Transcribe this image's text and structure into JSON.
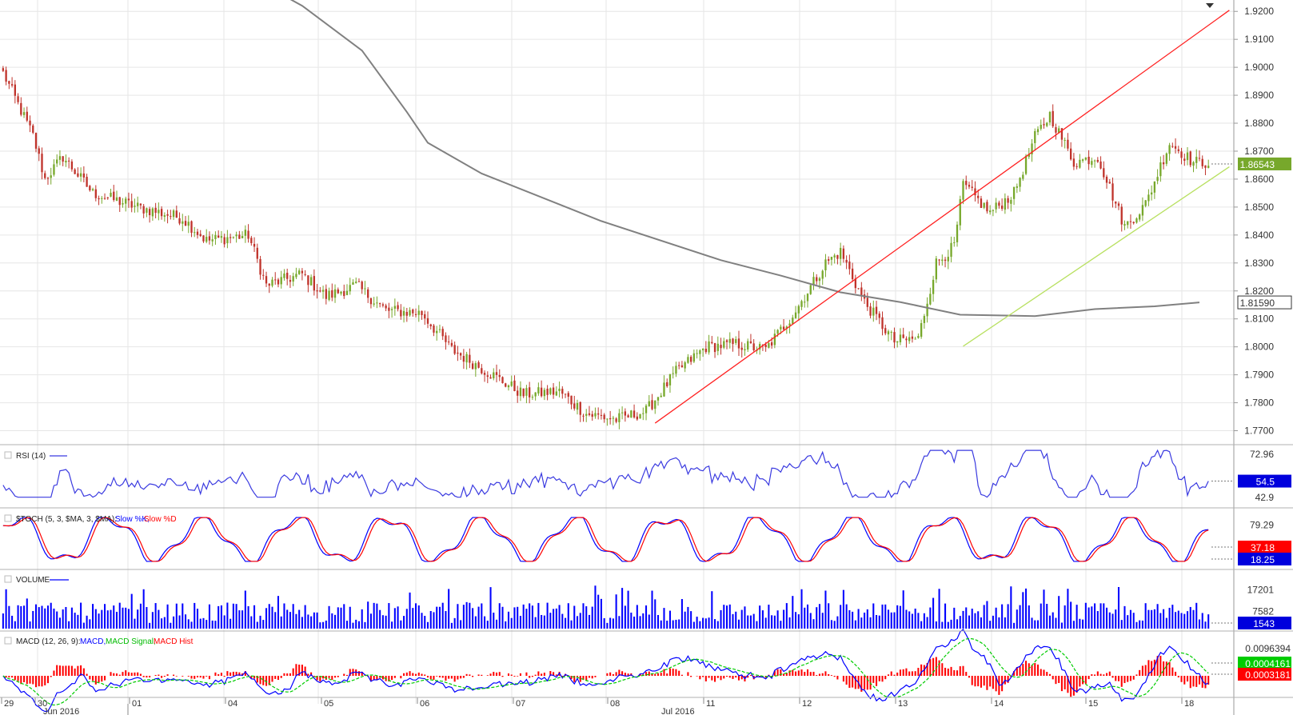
{
  "chart_data": {
    "type": "candlestick",
    "symbol_hint": "",
    "price_axis": {
      "range": [
        1.765,
        1.9235
      ],
      "ticks": [
        "1.9200",
        "1.9100",
        "1.9000",
        "1.8900",
        "1.8800",
        "1.8700",
        "1.8600",
        "1.8500",
        "1.8400",
        "1.8300",
        "1.8200",
        "1.8100",
        "1.8000",
        "1.7900",
        "1.7800",
        "1.7700"
      ],
      "tick_values": [
        1.92,
        1.91,
        1.9,
        1.89,
        1.88,
        1.87,
        1.86,
        1.85,
        1.84,
        1.83,
        1.82,
        1.81,
        1.8,
        1.79,
        1.78,
        1.77
      ],
      "current_price": 1.86543,
      "current_price_label": "1.86543",
      "ma_value": 1.8159,
      "ma_value_label": "1.81590"
    },
    "x_axis": {
      "day_labels": [
        "29",
        "30",
        "01",
        "04",
        "05",
        "06",
        "07",
        "08",
        "11",
        "12",
        "13",
        "14",
        "15",
        "18"
      ],
      "month_labels": [
        "Jun 2016",
        "Jul 2016"
      ]
    },
    "anchors": [
      {
        "i": 0,
        "p": 1.898
      },
      {
        "i": 10,
        "p": 1.8755
      },
      {
        "i": 14,
        "p": 1.86
      },
      {
        "i": 20,
        "p": 1.868
      },
      {
        "i": 30,
        "p": 1.855
      },
      {
        "i": 45,
        "p": 1.85
      },
      {
        "i": 60,
        "p": 1.846
      },
      {
        "i": 68,
        "p": 1.838
      },
      {
        "i": 82,
        "p": 1.84
      },
      {
        "i": 88,
        "p": 1.822
      },
      {
        "i": 100,
        "p": 1.826
      },
      {
        "i": 108,
        "p": 1.818
      },
      {
        "i": 118,
        "p": 1.822
      },
      {
        "i": 128,
        "p": 1.813
      },
      {
        "i": 140,
        "p": 1.812
      },
      {
        "i": 150,
        "p": 1.799
      },
      {
        "i": 162,
        "p": 1.791
      },
      {
        "i": 174,
        "p": 1.783
      },
      {
        "i": 186,
        "p": 1.784
      },
      {
        "i": 195,
        "p": 1.776
      },
      {
        "i": 205,
        "p": 1.774
      },
      {
        "i": 215,
        "p": 1.777
      },
      {
        "i": 225,
        "p": 1.791
      },
      {
        "i": 235,
        "p": 1.8
      },
      {
        "i": 245,
        "p": 1.801
      },
      {
        "i": 255,
        "p": 1.799
      },
      {
        "i": 265,
        "p": 1.813
      },
      {
        "i": 275,
        "p": 1.83
      },
      {
        "i": 280,
        "p": 1.834
      },
      {
        "i": 288,
        "p": 1.816
      },
      {
        "i": 298,
        "p": 1.802
      },
      {
        "i": 306,
        "p": 1.803
      },
      {
        "i": 312,
        "p": 1.83
      },
      {
        "i": 318,
        "p": 1.836
      },
      {
        "i": 321,
        "p": 1.858
      },
      {
        "i": 330,
        "p": 1.848
      },
      {
        "i": 338,
        "p": 1.855
      },
      {
        "i": 345,
        "p": 1.875
      },
      {
        "i": 350,
        "p": 1.883
      },
      {
        "i": 358,
        "p": 1.866
      },
      {
        "i": 366,
        "p": 1.868
      },
      {
        "i": 375,
        "p": 1.843
      },
      {
        "i": 382,
        "p": 1.851
      },
      {
        "i": 390,
        "p": 1.873
      },
      {
        "i": 398,
        "p": 1.866
      }
    ],
    "sma_line": {
      "color": "#808080",
      "points": [
        {
          "i": 78,
          "p": 1.935
        },
        {
          "i": 100,
          "p": 1.922
        },
        {
          "i": 120,
          "p": 1.906
        },
        {
          "i": 135,
          "p": 1.884
        },
        {
          "i": 142,
          "p": 1.873
        },
        {
          "i": 160,
          "p": 1.862
        },
        {
          "i": 200,
          "p": 1.845
        },
        {
          "i": 240,
          "p": 1.831
        },
        {
          "i": 260,
          "p": 1.8255
        },
        {
          "i": 280,
          "p": 1.8195
        },
        {
          "i": 300,
          "p": 1.816
        },
        {
          "i": 320,
          "p": 1.8115
        },
        {
          "i": 345,
          "p": 1.811
        },
        {
          "i": 365,
          "p": 1.8135
        },
        {
          "i": 385,
          "p": 1.8145
        },
        {
          "i": 400,
          "p": 1.8159
        }
      ]
    },
    "trendlines": [
      {
        "color": "#ff2020",
        "from": {
          "i": 218,
          "p": 1.7727
        },
        "to": {
          "i": 410,
          "p": 1.9204
        }
      },
      {
        "color": "#b8e060",
        "from": {
          "i": 321,
          "p": 1.8002
        },
        "to": {
          "i": 410,
          "p": 1.8644
        }
      }
    ],
    "colors": {
      "up": "#77a82b",
      "down": "#c0332b",
      "volume": "#0000ff",
      "rsi": "#3a3ae0",
      "stoch_k": "#0000ff",
      "stoch_d": "#ff0000",
      "macd": "#0000ff",
      "macd_signal": "#00cc00",
      "macd_hist": "#ff0000",
      "grid": "#e6e6e6"
    },
    "indicators": [
      {
        "id": "rsi",
        "legend": "RSI (14)",
        "ticks": [
          "72.96",
          "42.9"
        ],
        "last_label": "54.5",
        "range": [
          30,
          80
        ]
      },
      {
        "id": "stoch",
        "legend": "$TOCH (5, 3, $MA, 3, $MA):",
        "k_label": "Slow %K,",
        "d_label": "Slow %D",
        "ticks": [
          "79.29"
        ],
        "d_last_label": "37.18",
        "k_last_label": "18.25",
        "range": [
          0,
          100
        ]
      },
      {
        "id": "volume",
        "legend": "VOLUME",
        "ticks": [
          "17201",
          "7582"
        ],
        "last_label": "1543"
      },
      {
        "id": "macd",
        "legend": "MACD (12, 26, 9):",
        "macd_label": "MACD,",
        "signal_label": "MACD Signal,",
        "hist_label": "MACD Hist",
        "ticks": [
          "0.0096394"
        ],
        "signal_last_label": "0.0004161",
        "hist_last_label": "0.0003181"
      }
    ]
  }
}
